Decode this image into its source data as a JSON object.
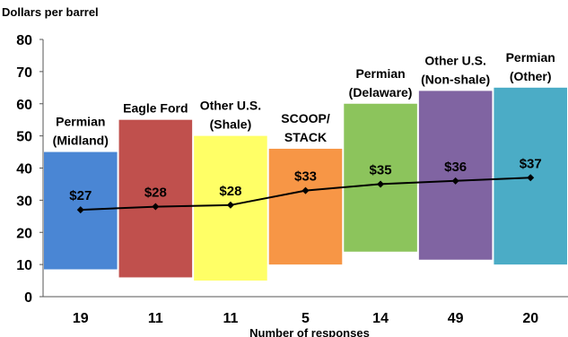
{
  "chart_data": {
    "type": "bar",
    "ylabel": "Dollars per barrel",
    "xlabel": "Number of responses",
    "ylim": [
      0,
      80
    ],
    "yticks": [
      0,
      10,
      20,
      30,
      40,
      50,
      60,
      70,
      80
    ],
    "grid": false,
    "categories": [
      {
        "name": "Permian (Midland)",
        "lines": [
          "Permian",
          "(Midland)"
        ],
        "low": 8.5,
        "high": 45,
        "responses": 19,
        "value": 27,
        "label": "$27",
        "color": "#4a86d4"
      },
      {
        "name": "Eagle Ford",
        "lines": [
          "Eagle Ford"
        ],
        "low": 6,
        "high": 55,
        "responses": 11,
        "value": 28,
        "label": "$28",
        "color": "#c0504d"
      },
      {
        "name": "Other U.S. (Shale)",
        "lines": [
          "Other U.S.",
          "(Shale)"
        ],
        "low": 5,
        "high": 50,
        "responses": 11,
        "value": 28.5,
        "label": "$28",
        "color": "#ffff66"
      },
      {
        "name": "SCOOP/ STACK",
        "lines": [
          "SCOOP/",
          "STACK"
        ],
        "low": 10,
        "high": 46,
        "responses": 5,
        "value": 33,
        "label": "$33",
        "color": "#f79646"
      },
      {
        "name": "Permian (Delaware)",
        "lines": [
          "Permian",
          "(Delaware)"
        ],
        "low": 14,
        "high": 60,
        "responses": 14,
        "value": 35,
        "label": "$35",
        "color": "#8cc45c"
      },
      {
        "name": "Other U.S. (Non-shale)",
        "lines": [
          "Other U.S.",
          "(Non-shale)"
        ],
        "low": 11.5,
        "high": 64,
        "responses": 49,
        "value": 36,
        "label": "$36",
        "color": "#8064a2"
      },
      {
        "name": "Permian (Other)",
        "lines": [
          "Permian",
          "(Other)"
        ],
        "low": 10,
        "high": 65,
        "responses": 20,
        "value": 37,
        "label": "$37",
        "color": "#4bacc6"
      }
    ],
    "series": [
      {
        "type": "line",
        "values": [
          27,
          28,
          28.5,
          33,
          35,
          36,
          37
        ],
        "color": "#000000"
      }
    ]
  }
}
